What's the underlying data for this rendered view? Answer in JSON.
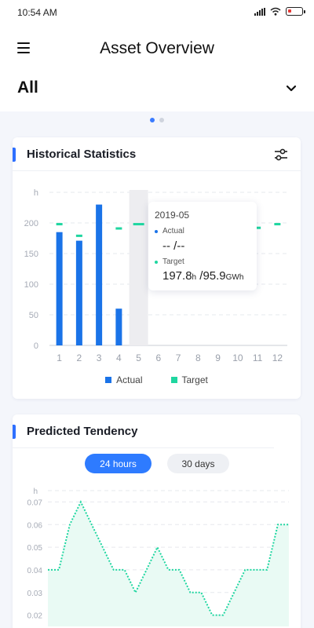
{
  "status_bar": {
    "time": "10:54 AM"
  },
  "header": {
    "title": "Asset Overview",
    "filter_value": "All"
  },
  "colors": {
    "actual": "#1a73e8",
    "target": "#1fd6a0",
    "accent": "#2e7bff"
  },
  "icons": [
    "menu-icon",
    "chevron-down-icon",
    "settings-sliders-icon",
    "signal-icon",
    "wifi-icon",
    "battery-icon"
  ],
  "carousel": {
    "pages": 2,
    "active_index": 0
  },
  "historical_statistics": {
    "title": "Historical Statistics",
    "chart_data": {
      "type": "bar",
      "ylabel": "h",
      "ylim": [
        0,
        250
      ],
      "yticks": [
        "0",
        "50",
        "100",
        "150",
        "200"
      ],
      "categories": [
        "1",
        "2",
        "3",
        "4",
        "5",
        "6",
        "7",
        "8",
        "9",
        "10",
        "11",
        "12"
      ],
      "series": [
        {
          "name": "Actual",
          "type": "bar",
          "values": [
            185,
            171,
            230,
            60,
            null,
            null,
            null,
            null,
            null,
            null,
            null,
            null
          ]
        },
        {
          "name": "Target",
          "type": "marker",
          "values": [
            198,
            179,
            null,
            191,
            198,
            null,
            null,
            null,
            null,
            null,
            192,
            198
          ]
        }
      ],
      "highlighted_category": "5",
      "grid": true,
      "legend": "bottom"
    },
    "tooltip": {
      "date": "2019-05",
      "actual_label": "Actual",
      "actual_value": "-- /--",
      "target_label": "Target",
      "target_hours": "197.8",
      "target_hours_unit": "h",
      "target_energy": " /95.9",
      "target_energy_unit": "GWh"
    }
  },
  "predicted_tendency": {
    "title": "Predicted Tendency",
    "tabs": [
      {
        "label": "24 hours",
        "active": true
      },
      {
        "label": "30 days",
        "active": false
      }
    ],
    "chart_data": {
      "type": "area",
      "ylabel": "h",
      "ylim": [
        0.015,
        0.075
      ],
      "yticks": [
        "0.02",
        "0.03",
        "0.04",
        "0.05",
        "0.06",
        "0.07"
      ],
      "series": [
        {
          "values": [
            0.04,
            0.04,
            0.06,
            0.07,
            0.06,
            0.05,
            0.04,
            0.04,
            0.03,
            0.04,
            0.05,
            0.04,
            0.04,
            0.03,
            0.03,
            0.02,
            0.02,
            0.03,
            0.04,
            0.04,
            0.04,
            0.06,
            0.06
          ]
        }
      ],
      "grid": true
    }
  }
}
